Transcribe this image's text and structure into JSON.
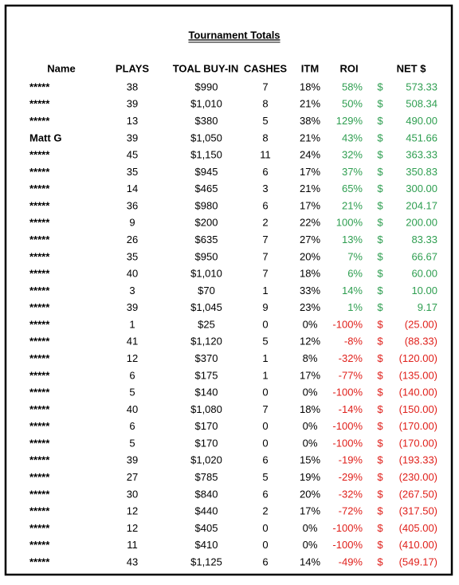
{
  "title": "Tournament Totals",
  "table": {
    "header": [
      "Name",
      "PLAYS",
      "TOAL BUY-IN",
      "CASHES",
      "ITM",
      "ROI",
      "NET $"
    ],
    "colors": {
      "gain": "#2e9e50",
      "loss": "#e0201b"
    },
    "rows": [
      [
        "*****",
        "38",
        "$990",
        "7",
        "18%",
        "58%",
        "$",
        "573.33"
      ],
      [
        "*****",
        "39",
        "$1,010",
        "8",
        "21%",
        "50%",
        "$",
        "508.34"
      ],
      [
        "*****",
        "13",
        "$380",
        "5",
        "38%",
        "129%",
        "$",
        "490.00"
      ],
      [
        "Matt G",
        "39",
        "$1,050",
        "8",
        "21%",
        "43%",
        "$",
        "451.66"
      ],
      [
        "*****",
        "45",
        "$1,150",
        "11",
        "24%",
        "32%",
        "$",
        "363.33"
      ],
      [
        "*****",
        "35",
        "$945",
        "6",
        "17%",
        "37%",
        "$",
        "350.83"
      ],
      [
        "*****",
        "14",
        "$465",
        "3",
        "21%",
        "65%",
        "$",
        "300.00"
      ],
      [
        "*****",
        "36",
        "$980",
        "6",
        "17%",
        "21%",
        "$",
        "204.17"
      ],
      [
        "*****",
        "9",
        "$200",
        "2",
        "22%",
        "100%",
        "$",
        "200.00"
      ],
      [
        "*****",
        "26",
        "$635",
        "7",
        "27%",
        "13%",
        "$",
        "83.33"
      ],
      [
        "*****",
        "35",
        "$950",
        "7",
        "20%",
        "7%",
        "$",
        "66.67"
      ],
      [
        "*****",
        "40",
        "$1,010",
        "7",
        "18%",
        "6%",
        "$",
        "60.00"
      ],
      [
        "*****",
        "3",
        "$70",
        "1",
        "33%",
        "14%",
        "$",
        "10.00"
      ],
      [
        "*****",
        "39",
        "$1,045",
        "9",
        "23%",
        "1%",
        "$",
        "9.17"
      ],
      [
        "*****",
        "1",
        "$25",
        "0",
        "0%",
        "-100%",
        "$",
        "(25.00)"
      ],
      [
        "*****",
        "41",
        "$1,120",
        "5",
        "12%",
        "-8%",
        "$",
        "(88.33)"
      ],
      [
        "*****",
        "12",
        "$370",
        "1",
        "8%",
        "-32%",
        "$",
        "(120.00)"
      ],
      [
        "*****",
        "6",
        "$175",
        "1",
        "17%",
        "-77%",
        "$",
        "(135.00)"
      ],
      [
        "*****",
        "5",
        "$140",
        "0",
        "0%",
        "-100%",
        "$",
        "(140.00)"
      ],
      [
        "*****",
        "40",
        "$1,080",
        "7",
        "18%",
        "-14%",
        "$",
        "(150.00)"
      ],
      [
        "*****",
        "6",
        "$170",
        "0",
        "0%",
        "-100%",
        "$",
        "(170.00)"
      ],
      [
        "*****",
        "5",
        "$170",
        "0",
        "0%",
        "-100%",
        "$",
        "(170.00)"
      ],
      [
        "*****",
        "39",
        "$1,020",
        "6",
        "15%",
        "-19%",
        "$",
        "(193.33)"
      ],
      [
        "*****",
        "27",
        "$785",
        "5",
        "19%",
        "-29%",
        "$",
        "(230.00)"
      ],
      [
        "*****",
        "30",
        "$840",
        "6",
        "20%",
        "-32%",
        "$",
        "(267.50)"
      ],
      [
        "*****",
        "12",
        "$440",
        "2",
        "17%",
        "-72%",
        "$",
        "(317.50)"
      ],
      [
        "*****",
        "12",
        "$405",
        "0",
        "0%",
        "-100%",
        "$",
        "(405.00)"
      ],
      [
        "*****",
        "11",
        "$410",
        "0",
        "0%",
        "-100%",
        "$",
        "(410.00)"
      ],
      [
        "*****",
        "43",
        "$1,125",
        "6",
        "14%",
        "-49%",
        "$",
        "(549.17)"
      ]
    ]
  }
}
